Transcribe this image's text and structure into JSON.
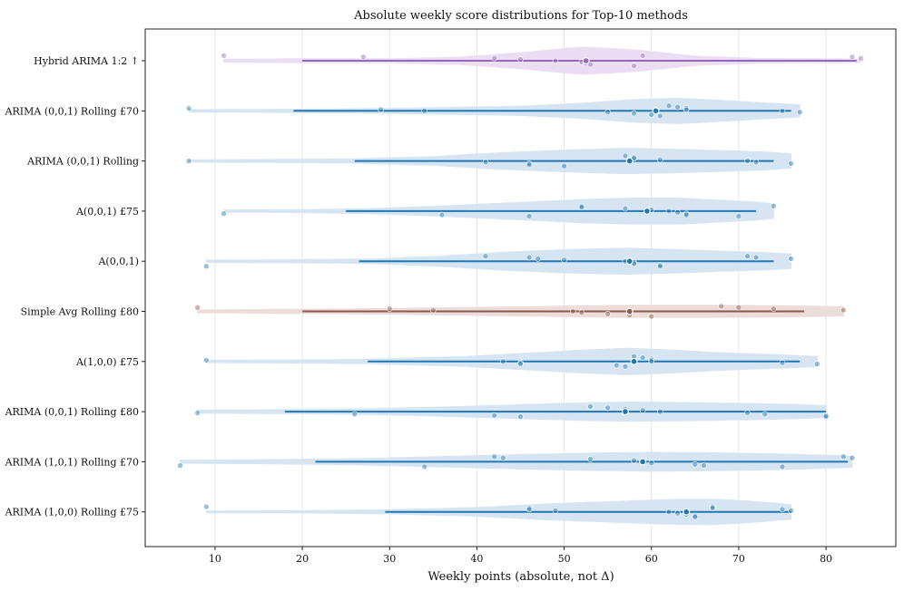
{
  "chart_data": {
    "type": "violin",
    "title": "Absolute weekly score distributions for Top-10 methods",
    "xlabel": "Weekly points (absolute, not Δ)",
    "ylabel": "",
    "xlim": [
      2,
      88
    ],
    "xticks": [
      10,
      20,
      30,
      40,
      50,
      60,
      70,
      80
    ],
    "grid": "vertical",
    "methods": [
      {
        "label": "Hybrid ARIMA 1:2 ↑",
        "color": "#9467bd",
        "fill": "#e9dcf4",
        "range": [
          11,
          84
        ],
        "whisker": [
          20,
          83.5
        ],
        "median": 52.5,
        "points": [
          11,
          27,
          42,
          45,
          49,
          52,
          52.5,
          53,
          58,
          59,
          83,
          84
        ],
        "density": [
          [
            11,
            0.1
          ],
          [
            20,
            0.14
          ],
          [
            30,
            0.14
          ],
          [
            38,
            0.25
          ],
          [
            45,
            0.55
          ],
          [
            52,
            0.95
          ],
          [
            58,
            0.75
          ],
          [
            65,
            0.32
          ],
          [
            72,
            0.16
          ],
          [
            80,
            0.14
          ],
          [
            84,
            0.11
          ]
        ]
      },
      {
        "label": "ARIMA (0,0,1) Rolling £70",
        "color": "#1f77b4",
        "fill": "#d4e4f1",
        "range": [
          7,
          77
        ],
        "whisker": [
          19,
          76
        ],
        "median": 60.5,
        "points": [
          7,
          29,
          34,
          55,
          58,
          60,
          61,
          62,
          63,
          64,
          64,
          75,
          77
        ],
        "density": [
          [
            7,
            0.08
          ],
          [
            15,
            0.1
          ],
          [
            25,
            0.14
          ],
          [
            35,
            0.22
          ],
          [
            45,
            0.32
          ],
          [
            52,
            0.52
          ],
          [
            58,
            0.78
          ],
          [
            63,
            0.88
          ],
          [
            68,
            0.72
          ],
          [
            73,
            0.55
          ],
          [
            77,
            0.42
          ]
        ]
      },
      {
        "label": "ARIMA (0,0,1) Rolling",
        "color": "#1f77b4",
        "fill": "#d4e4f1",
        "range": [
          7,
          76
        ],
        "whisker": [
          26,
          74
        ],
        "median": 57.5,
        "points": [
          7,
          41,
          46,
          46,
          50,
          57,
          58,
          58,
          61,
          71,
          72,
          76
        ],
        "density": [
          [
            7,
            0.08
          ],
          [
            15,
            0.1
          ],
          [
            25,
            0.14
          ],
          [
            35,
            0.3
          ],
          [
            42,
            0.55
          ],
          [
            50,
            0.75
          ],
          [
            57,
            0.88
          ],
          [
            62,
            0.82
          ],
          [
            68,
            0.72
          ],
          [
            73,
            0.62
          ],
          [
            76,
            0.5
          ]
        ]
      },
      {
        "label": "A(0,0,1) £75",
        "color": "#1f77b4",
        "fill": "#d4e4f1",
        "range": [
          11,
          74
        ],
        "whisker": [
          25,
          72
        ],
        "median": 59.5,
        "points": [
          11,
          36,
          46,
          52,
          52,
          57,
          60,
          62,
          63,
          64,
          64,
          70,
          74
        ],
        "density": [
          [
            11,
            0.08
          ],
          [
            20,
            0.1
          ],
          [
            28,
            0.18
          ],
          [
            36,
            0.35
          ],
          [
            45,
            0.6
          ],
          [
            52,
            0.8
          ],
          [
            58,
            0.9
          ],
          [
            63,
            0.9
          ],
          [
            68,
            0.75
          ],
          [
            72,
            0.62
          ],
          [
            74,
            0.5
          ]
        ]
      },
      {
        "label": "A(0,0,1)",
        "color": "#1f77b4",
        "fill": "#d4e4f1",
        "range": [
          9,
          76
        ],
        "whisker": [
          26.5,
          74
        ],
        "median": 57.5,
        "points": [
          9,
          41,
          46,
          47,
          50,
          57,
          58,
          58,
          61,
          61,
          71,
          72,
          76
        ],
        "density": [
          [
            9,
            0.08
          ],
          [
            18,
            0.1
          ],
          [
            28,
            0.16
          ],
          [
            36,
            0.35
          ],
          [
            43,
            0.62
          ],
          [
            50,
            0.8
          ],
          [
            57,
            0.9
          ],
          [
            62,
            0.82
          ],
          [
            68,
            0.7
          ],
          [
            73,
            0.6
          ],
          [
            76,
            0.5
          ]
        ]
      },
      {
        "label": "Simple Avg Rolling £80",
        "color": "#8c564b",
        "fill": "#ecdcd9",
        "range": [
          8,
          82
        ],
        "whisker": [
          20,
          77.5
        ],
        "median": 57.5,
        "points": [
          8,
          30,
          35,
          51,
          52,
          55,
          57.5,
          60,
          68,
          70,
          74,
          82
        ],
        "density": [
          [
            8,
            0.1
          ],
          [
            20,
            0.15
          ],
          [
            30,
            0.2
          ],
          [
            40,
            0.28
          ],
          [
            50,
            0.36
          ],
          [
            57,
            0.42
          ],
          [
            65,
            0.42
          ],
          [
            72,
            0.4
          ],
          [
            78,
            0.36
          ],
          [
            82,
            0.32
          ]
        ]
      },
      {
        "label": "A(1,0,0) £75",
        "color": "#1f77b4",
        "fill": "#d4e4f1",
        "range": [
          9,
          79
        ],
        "whisker": [
          27.5,
          77
        ],
        "median": 58,
        "points": [
          9,
          43,
          45,
          45,
          56,
          57,
          58,
          59,
          60,
          60,
          60,
          75,
          79
        ],
        "density": [
          [
            9,
            0.08
          ],
          [
            18,
            0.1
          ],
          [
            28,
            0.16
          ],
          [
            38,
            0.32
          ],
          [
            45,
            0.55
          ],
          [
            52,
            0.78
          ],
          [
            57,
            0.92
          ],
          [
            62,
            0.8
          ],
          [
            68,
            0.6
          ],
          [
            74,
            0.48
          ],
          [
            79,
            0.35
          ]
        ]
      },
      {
        "label": "ARIMA (0,0,1) Rolling £80",
        "color": "#1f77b4",
        "fill": "#d4e4f1",
        "range": [
          8,
          80
        ],
        "whisker": [
          18,
          80
        ],
        "median": 57,
        "points": [
          8,
          26,
          42,
          45,
          53,
          55,
          57,
          59,
          61,
          71,
          73,
          80,
          80
        ],
        "density": [
          [
            8,
            0.1
          ],
          [
            18,
            0.14
          ],
          [
            28,
            0.2
          ],
          [
            38,
            0.35
          ],
          [
            46,
            0.5
          ],
          [
            53,
            0.62
          ],
          [
            58,
            0.66
          ],
          [
            65,
            0.62
          ],
          [
            72,
            0.55
          ],
          [
            77,
            0.48
          ],
          [
            80,
            0.4
          ]
        ]
      },
      {
        "label": "ARIMA (1,0,1) Rolling £70",
        "color": "#1f77b4",
        "fill": "#d4e4f1",
        "range": [
          6,
          83
        ],
        "whisker": [
          21.5,
          82.5
        ],
        "median": 59,
        "points": [
          6,
          34,
          42,
          43,
          53,
          58,
          59,
          60,
          65,
          66,
          75,
          82,
          83
        ],
        "density": [
          [
            6,
            0.1
          ],
          [
            15,
            0.14
          ],
          [
            25,
            0.2
          ],
          [
            35,
            0.34
          ],
          [
            45,
            0.5
          ],
          [
            53,
            0.6
          ],
          [
            60,
            0.65
          ],
          [
            67,
            0.62
          ],
          [
            74,
            0.55
          ],
          [
            80,
            0.45
          ],
          [
            83,
            0.38
          ]
        ]
      },
      {
        "label": "ARIMA (1,0,0) Rolling £75",
        "color": "#1f77b4",
        "fill": "#d4e4f1",
        "range": [
          9,
          76
        ],
        "whisker": [
          29.5,
          76
        ],
        "median": 64,
        "points": [
          9,
          46,
          46,
          49,
          62,
          63,
          64,
          65,
          65,
          67,
          67,
          75,
          76
        ],
        "density": [
          [
            9,
            0.06
          ],
          [
            20,
            0.08
          ],
          [
            30,
            0.14
          ],
          [
            40,
            0.3
          ],
          [
            48,
            0.55
          ],
          [
            55,
            0.7
          ],
          [
            62,
            0.85
          ],
          [
            67,
            0.88
          ],
          [
            71,
            0.75
          ],
          [
            74,
            0.6
          ],
          [
            76,
            0.5
          ]
        ]
      }
    ]
  }
}
